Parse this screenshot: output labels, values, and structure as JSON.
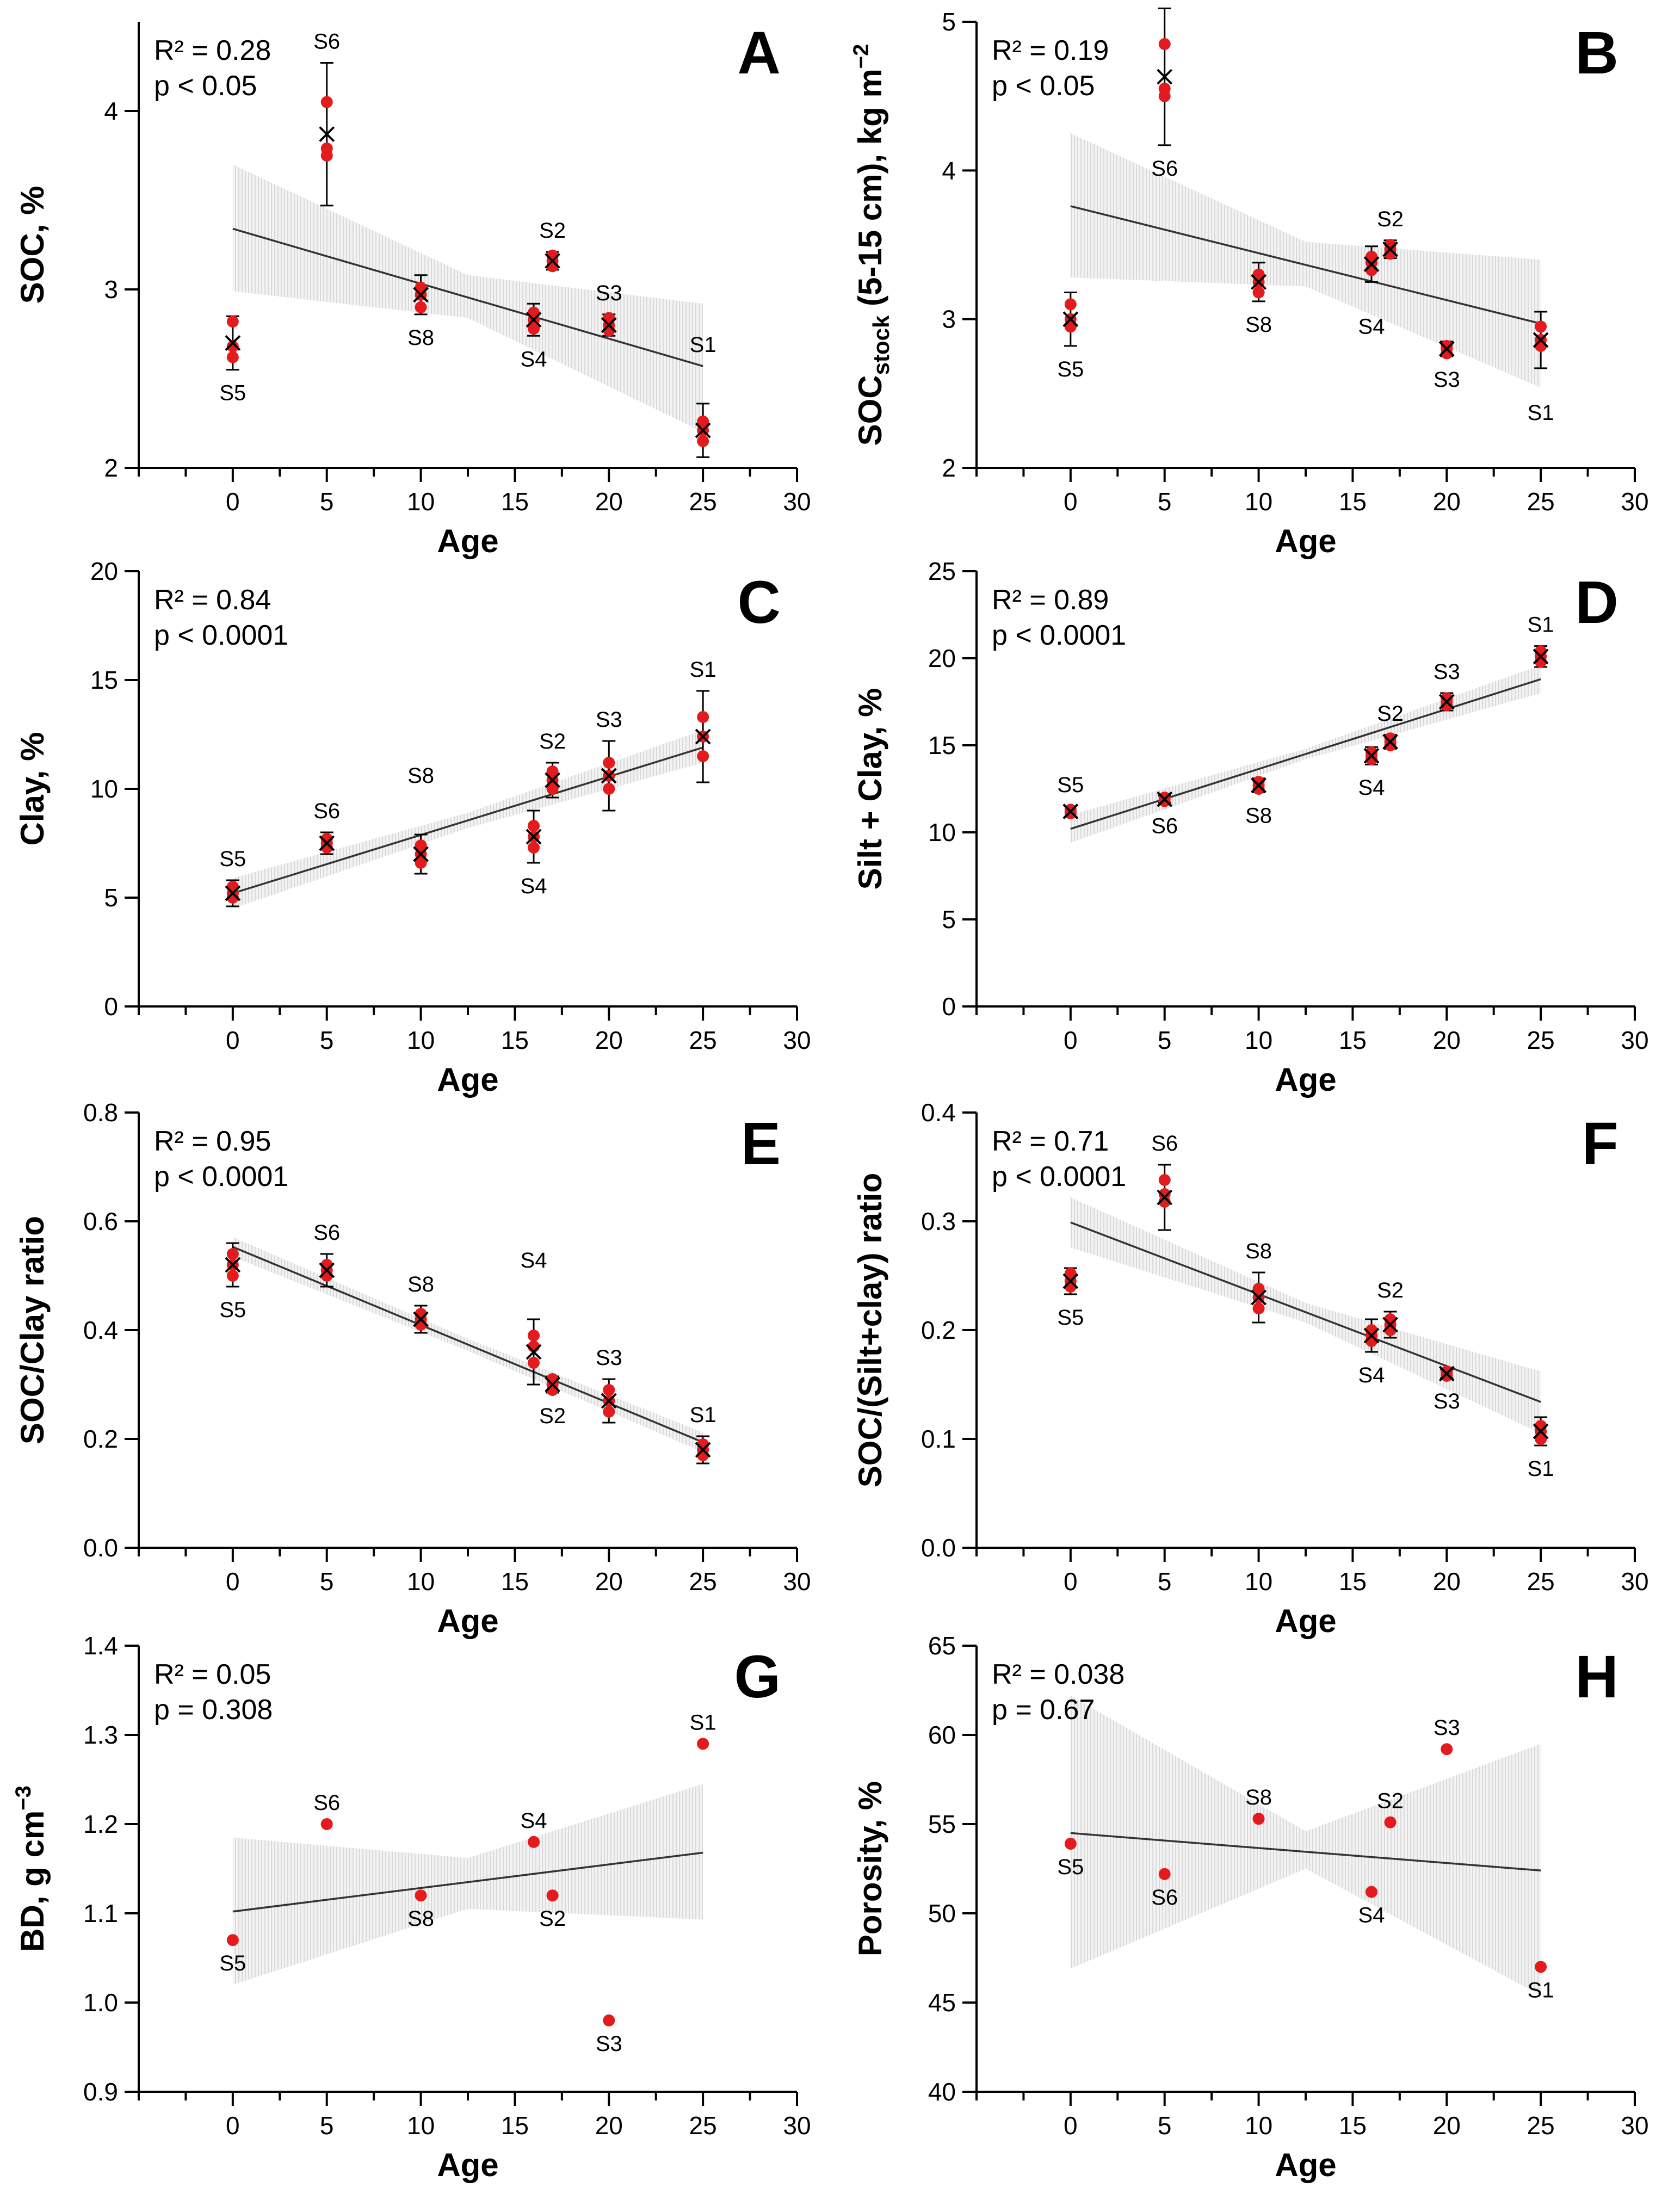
{
  "figure": {
    "point_color": "#e41a1c",
    "mean_marker_color": "#000000",
    "band_color": "#d9d9d9",
    "line_color": "#333333"
  },
  "chart_data": [
    {
      "type": "scatter",
      "panel": "A",
      "xlabel": "Age",
      "ylabel": "SOC,  %",
      "xlim": [
        -5,
        30
      ],
      "ylim": [
        2,
        4.5
      ],
      "xticks": [
        0,
        5,
        10,
        15,
        20,
        25,
        30
      ],
      "yticks": [
        2,
        3,
        4
      ],
      "stat_r2": "R² = 0.28",
      "stat_p": "p < 0.05",
      "sites": [
        {
          "label": "S5",
          "x": 0,
          "mean": 2.7,
          "err": 0.15,
          "reps": [
            2.62,
            2.68,
            2.82
          ],
          "label_pos": "below"
        },
        {
          "label": "S6",
          "x": 5,
          "mean": 3.87,
          "err": 0.4,
          "reps": [
            3.75,
            3.79,
            4.05
          ],
          "label_pos": "above"
        },
        {
          "label": "S8",
          "x": 10,
          "mean": 2.97,
          "err": 0.11,
          "reps": [
            2.9,
            2.97,
            3.01
          ],
          "label_pos": "below"
        },
        {
          "label": "S4",
          "x": 16,
          "mean": 2.83,
          "err": 0.09,
          "reps": [
            2.78,
            2.83,
            2.87
          ],
          "label_pos": "below"
        },
        {
          "label": "S2",
          "x": 17,
          "mean": 3.16,
          "err": 0.05,
          "reps": [
            3.13,
            3.16,
            3.19
          ],
          "label_pos": "above"
        },
        {
          "label": "S3",
          "x": 20,
          "mean": 2.8,
          "err": 0.06,
          "reps": [
            2.77,
            2.8,
            2.84
          ],
          "label_pos": "above"
        },
        {
          "label": "S1",
          "x": 25,
          "mean": 2.21,
          "err": 0.15,
          "reps": [
            2.15,
            2.21,
            2.26
          ],
          "label_pos": "above_far"
        }
      ],
      "fit": {
        "x0": 0,
        "y0": 3.34,
        "x1": 25,
        "y1": 2.57
      },
      "ci": {
        "x": [
          0,
          12.5,
          25
        ],
        "lo": [
          2.99,
          2.84,
          2.2
        ],
        "hi": [
          3.7,
          3.08,
          2.92
        ]
      }
    },
    {
      "type": "scatter",
      "panel": "B",
      "xlabel": "Age",
      "ylabel": "SOC(stock) (5-15 cm), kg m-2",
      "ylabel_parts": {
        "main": "SOC",
        "sub": "stock",
        "rest": " (5-15 cm), kg m",
        "sup": "−2"
      },
      "xlim": [
        -5,
        30
      ],
      "ylim": [
        2,
        5
      ],
      "xticks": [
        0,
        5,
        10,
        15,
        20,
        25,
        30
      ],
      "yticks": [
        2,
        3,
        4,
        5
      ],
      "stat_r2": "R² = 0.19",
      "stat_p": "p < 0.05",
      "sites": [
        {
          "label": "S5",
          "x": 0,
          "mean": 3.0,
          "err": 0.18,
          "reps": [
            2.95,
            3.0,
            3.1
          ],
          "label_pos": "below"
        },
        {
          "label": "S6",
          "x": 5,
          "mean": 4.63,
          "err": 0.46,
          "reps": [
            4.5,
            4.55,
            4.85
          ],
          "label_pos": "below"
        },
        {
          "label": "S8",
          "x": 10,
          "mean": 3.25,
          "err": 0.13,
          "reps": [
            3.18,
            3.25,
            3.3
          ],
          "label_pos": "below"
        },
        {
          "label": "S4",
          "x": 16,
          "mean": 3.37,
          "err": 0.12,
          "reps": [
            3.33,
            3.38,
            3.42
          ],
          "label_pos": "below_far"
        },
        {
          "label": "S2",
          "x": 17,
          "mean": 3.47,
          "err": 0.06,
          "reps": [
            3.44,
            3.47,
            3.5
          ],
          "label_pos": "above"
        },
        {
          "label": "S3",
          "x": 20,
          "mean": 2.8,
          "err": 0.05,
          "reps": [
            2.77,
            2.8,
            2.82
          ],
          "label_pos": "below"
        },
        {
          "label": "S1",
          "x": 25,
          "mean": 2.86,
          "err": 0.19,
          "reps": [
            2.82,
            2.86,
            2.95
          ],
          "label_pos": "below_far"
        }
      ],
      "fit": {
        "x0": 0,
        "y0": 3.76,
        "x1": 25,
        "y1": 2.97
      },
      "ci": {
        "x": [
          0,
          12.5,
          25
        ],
        "lo": [
          3.28,
          3.22,
          2.54
        ],
        "hi": [
          4.25,
          3.52,
          3.4
        ]
      }
    },
    {
      "type": "scatter",
      "panel": "C",
      "xlabel": "Age",
      "ylabel": "Clay, %",
      "xlim": [
        -5,
        30
      ],
      "ylim": [
        0,
        20
      ],
      "xticks": [
        0,
        5,
        10,
        15,
        20,
        25,
        30
      ],
      "yticks": [
        0,
        5,
        10,
        15,
        20
      ],
      "stat_r2": "R² = 0.84",
      "stat_p": "p < 0.0001",
      "sites": [
        {
          "label": "S5",
          "x": 0,
          "mean": 5.2,
          "err": 0.6,
          "reps": [
            5.0,
            5.2,
            5.5
          ],
          "label_pos": "above"
        },
        {
          "label": "S6",
          "x": 5,
          "mean": 7.5,
          "err": 0.5,
          "reps": [
            7.3,
            7.5,
            7.7
          ],
          "label_pos": "above"
        },
        {
          "label": "S8",
          "x": 10,
          "mean": 7.0,
          "err": 0.9,
          "reps": [
            6.6,
            7.0,
            7.4
          ],
          "label_pos": "above_far"
        },
        {
          "label": "S4",
          "x": 16,
          "mean": 7.8,
          "err": 1.2,
          "reps": [
            7.3,
            7.8,
            8.3
          ],
          "label_pos": "below"
        },
        {
          "label": "S2",
          "x": 17,
          "mean": 10.4,
          "err": 0.8,
          "reps": [
            10.0,
            10.4,
            10.8
          ],
          "label_pos": "above"
        },
        {
          "label": "S3",
          "x": 20,
          "mean": 10.6,
          "err": 1.6,
          "reps": [
            10.0,
            10.6,
            11.2
          ],
          "label_pos": "above"
        },
        {
          "label": "S1",
          "x": 25,
          "mean": 12.4,
          "err": 2.1,
          "reps": [
            11.5,
            12.4,
            13.3
          ],
          "label_pos": "above"
        }
      ],
      "fit": {
        "x0": 0,
        "y0": 5.2,
        "x1": 25,
        "y1": 11.9
      },
      "ci": {
        "x": [
          0,
          12.5,
          25
        ],
        "lo": [
          4.5,
          8.2,
          11.2
        ],
        "hi": [
          5.9,
          8.9,
          12.7
        ]
      }
    },
    {
      "type": "scatter",
      "panel": "D",
      "xlabel": "Age",
      "ylabel": "Silt + Clay, %",
      "xlim": [
        -5,
        30
      ],
      "ylim": [
        0,
        25
      ],
      "xticks": [
        0,
        5,
        10,
        15,
        20,
        25,
        30
      ],
      "yticks": [
        0,
        5,
        10,
        15,
        20,
        25
      ],
      "stat_r2": "R² = 0.89",
      "stat_p": "p < 0.0001",
      "sites": [
        {
          "label": "S5",
          "x": 0,
          "mean": 11.2,
          "err": 0.3,
          "reps": [
            11.1,
            11.2,
            11.3
          ],
          "label_pos": "above"
        },
        {
          "label": "S6",
          "x": 5,
          "mean": 11.9,
          "err": 0.2,
          "reps": [
            11.8,
            11.9,
            12.0
          ],
          "label_pos": "below"
        },
        {
          "label": "S8",
          "x": 10,
          "mean": 12.7,
          "err": 0.4,
          "reps": [
            12.5,
            12.7,
            12.9
          ],
          "label_pos": "below"
        },
        {
          "label": "S4",
          "x": 16,
          "mean": 14.4,
          "err": 0.5,
          "reps": [
            14.2,
            14.4,
            14.6
          ],
          "label_pos": "below"
        },
        {
          "label": "S2",
          "x": 17,
          "mean": 15.2,
          "err": 0.4,
          "reps": [
            15.0,
            15.2,
            15.4
          ],
          "label_pos": "above"
        },
        {
          "label": "S3",
          "x": 20,
          "mean": 17.5,
          "err": 0.5,
          "reps": [
            17.3,
            17.5,
            17.7
          ],
          "label_pos": "above"
        },
        {
          "label": "S1",
          "x": 25,
          "mean": 20.1,
          "err": 0.6,
          "reps": [
            19.8,
            20.1,
            20.4
          ],
          "label_pos": "above"
        }
      ],
      "fit": {
        "x0": 0,
        "y0": 10.2,
        "x1": 25,
        "y1": 18.8
      },
      "ci": {
        "x": [
          0,
          12.5,
          25
        ],
        "lo": [
          9.4,
          14.2,
          18.0
        ],
        "hi": [
          11.0,
          14.8,
          19.6
        ]
      }
    },
    {
      "type": "scatter",
      "panel": "E",
      "xlabel": "Age",
      "ylabel": "SOC/Clay ratio",
      "xlim": [
        -5,
        30
      ],
      "ylim": [
        0,
        0.8
      ],
      "xticks": [
        0,
        5,
        10,
        15,
        20,
        25,
        30
      ],
      "yticks": [
        0.0,
        0.2,
        0.4,
        0.6,
        0.8
      ],
      "ytick_decimals": 1,
      "stat_r2": "R² = 0.95",
      "stat_p": "p < 0.0001",
      "sites": [
        {
          "label": "S5",
          "x": 0,
          "mean": 0.52,
          "err": 0.04,
          "reps": [
            0.5,
            0.52,
            0.54
          ],
          "label_pos": "below"
        },
        {
          "label": "S6",
          "x": 5,
          "mean": 0.51,
          "err": 0.03,
          "reps": [
            0.5,
            0.51,
            0.52
          ],
          "label_pos": "above"
        },
        {
          "label": "S8",
          "x": 10,
          "mean": 0.42,
          "err": 0.025,
          "reps": [
            0.41,
            0.42,
            0.43
          ],
          "label_pos": "above"
        },
        {
          "label": "S4",
          "x": 16,
          "mean": 0.36,
          "err": 0.06,
          "reps": [
            0.34,
            0.37,
            0.39
          ],
          "label_pos": "above_far"
        },
        {
          "label": "S2",
          "x": 17,
          "mean": 0.3,
          "err": 0.015,
          "reps": [
            0.29,
            0.3,
            0.31
          ],
          "label_pos": "below"
        },
        {
          "label": "S3",
          "x": 20,
          "mean": 0.27,
          "err": 0.04,
          "reps": [
            0.25,
            0.27,
            0.29
          ],
          "label_pos": "above"
        },
        {
          "label": "S1",
          "x": 25,
          "mean": 0.18,
          "err": 0.025,
          "reps": [
            0.17,
            0.18,
            0.19
          ],
          "label_pos": "above"
        }
      ],
      "fit": {
        "x0": 0,
        "y0": 0.553,
        "x1": 25,
        "y1": 0.194
      },
      "ci": {
        "x": [
          0,
          12.5,
          25
        ],
        "lo": [
          0.535,
          0.362,
          0.176
        ],
        "hi": [
          0.571,
          0.384,
          0.212
        ]
      }
    },
    {
      "type": "scatter",
      "panel": "F",
      "xlabel": "Age",
      "ylabel": "SOC/(Silt+clay) ratio",
      "xlim": [
        -5,
        30
      ],
      "ylim": [
        0,
        0.4
      ],
      "xticks": [
        0,
        5,
        10,
        15,
        20,
        25,
        30
      ],
      "yticks": [
        0.0,
        0.1,
        0.2,
        0.3,
        0.4
      ],
      "ytick_decimals": 1,
      "stat_r2": "R² = 0.71",
      "stat_p": "p < 0.0001",
      "sites": [
        {
          "label": "S5",
          "x": 0,
          "mean": 0.245,
          "err": 0.012,
          "reps": [
            0.24,
            0.245,
            0.252
          ],
          "label_pos": "below"
        },
        {
          "label": "S6",
          "x": 5,
          "mean": 0.322,
          "err": 0.03,
          "reps": [
            0.318,
            0.325,
            0.338
          ],
          "label_pos": "above"
        },
        {
          "label": "S8",
          "x": 10,
          "mean": 0.23,
          "err": 0.023,
          "reps": [
            0.22,
            0.23,
            0.238
          ],
          "label_pos": "above"
        },
        {
          "label": "S4",
          "x": 16,
          "mean": 0.195,
          "err": 0.015,
          "reps": [
            0.19,
            0.195,
            0.2
          ],
          "label_pos": "below"
        },
        {
          "label": "S2",
          "x": 17,
          "mean": 0.205,
          "err": 0.012,
          "reps": [
            0.2,
            0.205,
            0.21
          ],
          "label_pos": "above"
        },
        {
          "label": "S3",
          "x": 20,
          "mean": 0.16,
          "err": 0.004,
          "reps": [
            0.158,
            0.16,
            0.162
          ],
          "label_pos": "below"
        },
        {
          "label": "S1",
          "x": 25,
          "mean": 0.107,
          "err": 0.013,
          "reps": [
            0.1,
            0.107,
            0.112
          ],
          "label_pos": "below"
        }
      ],
      "fit": {
        "x0": 0,
        "y0": 0.299,
        "x1": 25,
        "y1": 0.134
      },
      "ci": {
        "x": [
          0,
          12.5,
          25
        ],
        "lo": [
          0.276,
          0.207,
          0.105
        ],
        "hi": [
          0.322,
          0.225,
          0.162
        ]
      }
    },
    {
      "type": "scatter",
      "panel": "G",
      "xlabel": "Age",
      "ylabel": "BD, g cm-3",
      "ylabel_parts": {
        "main": "BD, g cm",
        "sup": "−3"
      },
      "xlim": [
        -5,
        30
      ],
      "ylim": [
        0.9,
        1.4
      ],
      "xticks": [
        0,
        5,
        10,
        15,
        20,
        25,
        30
      ],
      "yticks": [
        0.9,
        1.0,
        1.1,
        1.2,
        1.3,
        1.4
      ],
      "ytick_decimals": 1,
      "stat_r2": "R² = 0.05",
      "stat_p": "p = 0.308",
      "sites": [
        {
          "label": "S5",
          "x": 0,
          "reps": [
            1.07
          ],
          "label_pos": "below"
        },
        {
          "label": "S6",
          "x": 5,
          "reps": [
            1.2
          ],
          "label_pos": "above"
        },
        {
          "label": "S8",
          "x": 10,
          "reps": [
            1.12
          ],
          "label_pos": "below"
        },
        {
          "label": "S4",
          "x": 16,
          "reps": [
            1.18
          ],
          "label_pos": "above"
        },
        {
          "label": "S2",
          "x": 17,
          "reps": [
            1.12
          ],
          "label_pos": "below"
        },
        {
          "label": "S3",
          "x": 20,
          "reps": [
            0.98
          ],
          "label_pos": "below"
        },
        {
          "label": "S1",
          "x": 25,
          "reps": [
            1.29
          ],
          "label_pos": "above"
        }
      ],
      "fit": {
        "x0": 0,
        "y0": 1.102,
        "x1": 25,
        "y1": 1.168
      },
      "ci": {
        "x": [
          0,
          12.5,
          25
        ],
        "lo": [
          1.02,
          1.105,
          1.093
        ],
        "hi": [
          1.185,
          1.162,
          1.245
        ]
      }
    },
    {
      "type": "scatter",
      "panel": "H",
      "xlabel": "Age",
      "ylabel": "Porosity, %",
      "xlim": [
        -5,
        30
      ],
      "ylim": [
        40,
        65
      ],
      "xticks": [
        0,
        5,
        10,
        15,
        20,
        25,
        30
      ],
      "yticks": [
        40,
        45,
        50,
        55,
        60,
        65
      ],
      "stat_r2": "R² = 0.038",
      "stat_p": "p = 0.67",
      "sites": [
        {
          "label": "S5",
          "x": 0,
          "reps": [
            53.9
          ],
          "label_pos": "below"
        },
        {
          "label": "S6",
          "x": 5,
          "reps": [
            52.2
          ],
          "label_pos": "below"
        },
        {
          "label": "S8",
          "x": 10,
          "reps": [
            55.3
          ],
          "label_pos": "above"
        },
        {
          "label": "S4",
          "x": 16,
          "reps": [
            51.2
          ],
          "label_pos": "below"
        },
        {
          "label": "S2",
          "x": 17,
          "reps": [
            55.1
          ],
          "label_pos": "above"
        },
        {
          "label": "S3",
          "x": 20,
          "reps": [
            59.2
          ],
          "label_pos": "above"
        },
        {
          "label": "S1",
          "x": 25,
          "reps": [
            47.0
          ],
          "label_pos": "below"
        }
      ],
      "fit": {
        "x0": 0,
        "y0": 54.5,
        "x1": 25,
        "y1": 52.4
      },
      "ci": {
        "x": [
          0,
          12.5,
          25
        ],
        "lo": [
          46.9,
          52.5,
          45.4
        ],
        "hi": [
          62.2,
          54.6,
          59.5
        ]
      }
    }
  ]
}
